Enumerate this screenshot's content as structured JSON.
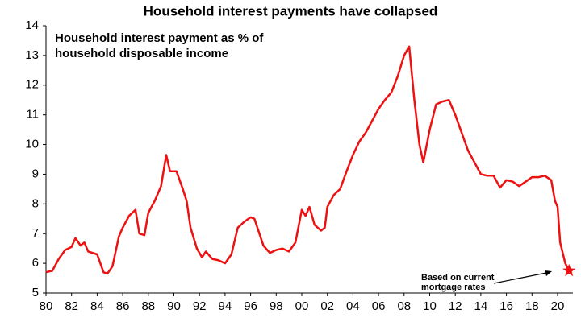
{
  "chart_data": {
    "type": "line",
    "title": "Household interest payments have collapsed",
    "subtitle": [
      "Household interest payment as % of",
      "household disposable income"
    ],
    "annotation": [
      "Based on current",
      "mortgage rates"
    ],
    "color": "#ee1111",
    "x": [
      1980.0,
      1980.5,
      1981.0,
      1981.5,
      1982.0,
      1982.3,
      1982.7,
      1983.0,
      1983.3,
      1984.0,
      1984.5,
      1984.8,
      1985.2,
      1985.7,
      1986.0,
      1986.5,
      1987.0,
      1987.3,
      1987.7,
      1988.0,
      1988.5,
      1989.0,
      1989.4,
      1989.7,
      1990.2,
      1990.7,
      1991.0,
      1991.3,
      1991.8,
      1992.2,
      1992.5,
      1993.0,
      1993.5,
      1994.0,
      1994.5,
      1995.0,
      1995.5,
      1996.0,
      1996.3,
      1997.0,
      1997.5,
      1998.0,
      1998.5,
      1999.0,
      1999.5,
      2000.0,
      2000.3,
      2000.6,
      2001.0,
      2001.5,
      2001.8,
      2002.0,
      2002.5,
      2003.0,
      2003.5,
      2004.0,
      2004.5,
      2005.0,
      2005.5,
      2006.0,
      2006.5,
      2007.0,
      2007.5,
      2008.0,
      2008.4,
      2008.8,
      2009.2,
      2009.5,
      2010.0,
      2010.5,
      2011.0,
      2011.5,
      2012.0,
      2012.5,
      2013.0,
      2013.5,
      2014.0,
      2014.5,
      2015.0,
      2015.5,
      2016.0,
      2016.5,
      2017.0,
      2017.5,
      2018.0,
      2018.5,
      2019.0,
      2019.5,
      2019.8,
      2020.0,
      2020.2,
      2020.6,
      2020.9
    ],
    "values": [
      5.7,
      5.75,
      6.15,
      6.45,
      6.55,
      6.85,
      6.6,
      6.7,
      6.4,
      6.3,
      5.7,
      5.65,
      5.9,
      6.9,
      7.2,
      7.6,
      7.8,
      7.0,
      6.95,
      7.7,
      8.1,
      8.6,
      9.65,
      9.1,
      9.1,
      8.5,
      8.1,
      7.2,
      6.5,
      6.2,
      6.4,
      6.15,
      6.1,
      6.0,
      6.3,
      7.2,
      7.4,
      7.55,
      7.5,
      6.6,
      6.35,
      6.45,
      6.5,
      6.4,
      6.7,
      7.8,
      7.6,
      7.9,
      7.3,
      7.1,
      7.2,
      7.9,
      8.3,
      8.5,
      9.1,
      9.65,
      10.1,
      10.4,
      10.8,
      11.2,
      11.5,
      11.75,
      12.3,
      13.0,
      13.3,
      11.5,
      10.0,
      9.4,
      10.5,
      11.35,
      11.45,
      11.5,
      11.0,
      10.4,
      9.8,
      9.4,
      9.0,
      8.95,
      8.95,
      8.55,
      8.8,
      8.75,
      8.6,
      8.75,
      8.9,
      8.9,
      8.95,
      8.8,
      8.1,
      7.9,
      6.7,
      6.0,
      5.75
    ],
    "star": {
      "x": 2020.9,
      "y": 5.75
    },
    "xlim": [
      1980,
      2021.2
    ],
    "xticks": [
      {
        "value": 1980,
        "label": "80"
      },
      {
        "value": 1982,
        "label": "82"
      },
      {
        "value": 1984,
        "label": "84"
      },
      {
        "value": 1986,
        "label": "86"
      },
      {
        "value": 1988,
        "label": "88"
      },
      {
        "value": 1990,
        "label": "90"
      },
      {
        "value": 1992,
        "label": "92"
      },
      {
        "value": 1994,
        "label": "94"
      },
      {
        "value": 1996,
        "label": "96"
      },
      {
        "value": 1998,
        "label": "98"
      },
      {
        "value": 2000,
        "label": "00"
      },
      {
        "value": 2002,
        "label": "02"
      },
      {
        "value": 2004,
        "label": "04"
      },
      {
        "value": 2006,
        "label": "06"
      },
      {
        "value": 2008,
        "label": "08"
      },
      {
        "value": 2010,
        "label": "10"
      },
      {
        "value": 2012,
        "label": "12"
      },
      {
        "value": 2014,
        "label": "14"
      },
      {
        "value": 2016,
        "label": "16"
      },
      {
        "value": 2018,
        "label": "18"
      },
      {
        "value": 2020,
        "label": "20"
      }
    ],
    "ylim": [
      5,
      14
    ],
    "yticks": [
      5,
      6,
      7,
      8,
      9,
      10,
      11,
      12,
      13,
      14
    ],
    "grid": false
  }
}
